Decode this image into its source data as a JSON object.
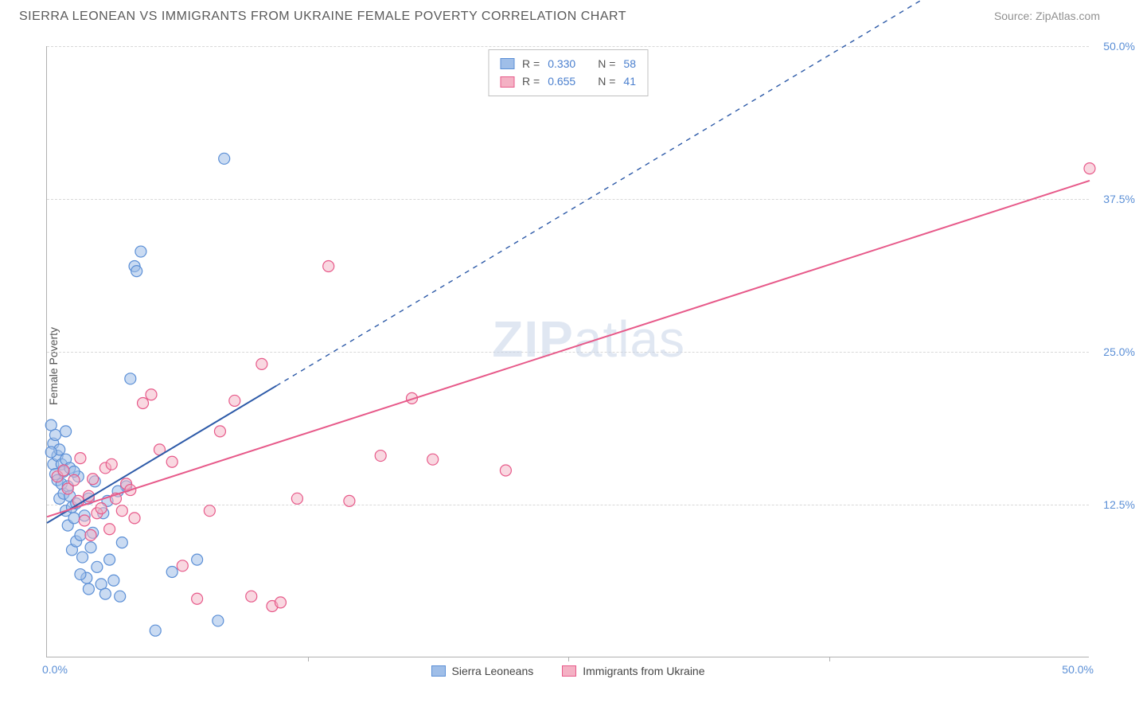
{
  "title": "SIERRA LEONEAN VS IMMIGRANTS FROM UKRAINE FEMALE POVERTY CORRELATION CHART",
  "source": "Source: ZipAtlas.com",
  "y_label": "Female Poverty",
  "watermark_a": "ZIP",
  "watermark_b": "atlas",
  "chart": {
    "type": "scatter",
    "xlim": [
      0,
      50
    ],
    "ylim": [
      0,
      50
    ],
    "y_ticks": [
      12.5,
      25.0,
      37.5,
      50.0
    ],
    "y_tick_labels": [
      "12.5%",
      "25.0%",
      "37.5%",
      "50.0%"
    ],
    "x_tick_left": "0.0%",
    "x_tick_right": "50.0%",
    "x_minor_ticks": [
      12.5,
      25.0,
      37.5
    ],
    "grid_color": "#d8d8d8",
    "background_color": "#ffffff",
    "marker_radius": 7,
    "marker_stroke_width": 1.2,
    "series": [
      {
        "name": "Sierra Leoneans",
        "fill": "#9fbee8",
        "stroke": "#5b8fd6",
        "fill_opacity": 0.55,
        "R": "0.330",
        "N": "58",
        "regression": {
          "x1": 0,
          "y1": 11.0,
          "x2": 50,
          "y2": 62.0,
          "solid_until_x": 11.0,
          "color": "#2d5aa8",
          "width": 2
        },
        "points": [
          [
            0.2,
            19.0
          ],
          [
            0.3,
            17.5
          ],
          [
            0.3,
            15.8
          ],
          [
            0.4,
            18.2
          ],
          [
            0.4,
            15.0
          ],
          [
            0.5,
            16.5
          ],
          [
            0.5,
            14.5
          ],
          [
            0.6,
            13.0
          ],
          [
            0.6,
            17.0
          ],
          [
            0.7,
            15.8
          ],
          [
            0.7,
            14.2
          ],
          [
            0.8,
            13.4
          ],
          [
            0.8,
            15.2
          ],
          [
            0.9,
            12.0
          ],
          [
            0.9,
            16.2
          ],
          [
            1.0,
            14.0
          ],
          [
            1.0,
            10.8
          ],
          [
            1.1,
            13.2
          ],
          [
            1.2,
            12.3
          ],
          [
            1.2,
            8.8
          ],
          [
            1.3,
            11.4
          ],
          [
            1.4,
            9.5
          ],
          [
            1.4,
            12.6
          ],
          [
            1.5,
            14.8
          ],
          [
            1.6,
            10.0
          ],
          [
            1.7,
            8.2
          ],
          [
            1.8,
            11.6
          ],
          [
            1.9,
            6.5
          ],
          [
            2.0,
            13.0
          ],
          [
            2.1,
            9.0
          ],
          [
            2.2,
            10.2
          ],
          [
            2.3,
            14.4
          ],
          [
            2.4,
            7.4
          ],
          [
            2.6,
            6.0
          ],
          [
            2.8,
            5.2
          ],
          [
            3.0,
            8.0
          ],
          [
            3.2,
            6.3
          ],
          [
            3.5,
            5.0
          ],
          [
            3.6,
            9.4
          ],
          [
            3.8,
            14.0
          ],
          [
            4.0,
            22.8
          ],
          [
            4.2,
            32.0
          ],
          [
            4.3,
            31.6
          ],
          [
            4.5,
            33.2
          ],
          [
            5.2,
            2.2
          ],
          [
            6.0,
            7.0
          ],
          [
            7.2,
            8.0
          ],
          [
            8.2,
            3.0
          ],
          [
            8.5,
            40.8
          ],
          [
            2.7,
            11.8
          ],
          [
            1.1,
            15.5
          ],
          [
            0.9,
            18.5
          ],
          [
            1.6,
            6.8
          ],
          [
            2.0,
            5.6
          ],
          [
            2.9,
            12.8
          ],
          [
            3.4,
            13.6
          ],
          [
            0.2,
            16.8
          ],
          [
            1.3,
            15.2
          ]
        ]
      },
      {
        "name": "Immigrants from Ukraine",
        "fill": "#f4b1c4",
        "stroke": "#e75a8a",
        "fill_opacity": 0.5,
        "R": "0.655",
        "N": "41",
        "regression": {
          "x1": 0,
          "y1": 11.5,
          "x2": 50,
          "y2": 39.0,
          "solid_until_x": 50,
          "color": "#e75a8a",
          "width": 2
        },
        "points": [
          [
            0.5,
            14.8
          ],
          [
            0.8,
            15.3
          ],
          [
            1.0,
            13.8
          ],
          [
            1.3,
            14.5
          ],
          [
            1.5,
            12.8
          ],
          [
            1.8,
            11.2
          ],
          [
            2.0,
            13.2
          ],
          [
            2.2,
            14.6
          ],
          [
            2.4,
            11.8
          ],
          [
            2.6,
            12.2
          ],
          [
            2.8,
            15.5
          ],
          [
            3.0,
            10.5
          ],
          [
            3.3,
            13.0
          ],
          [
            3.6,
            12.0
          ],
          [
            3.8,
            14.2
          ],
          [
            4.2,
            11.4
          ],
          [
            4.6,
            20.8
          ],
          [
            5.0,
            21.5
          ],
          [
            5.4,
            17.0
          ],
          [
            6.0,
            16.0
          ],
          [
            6.5,
            7.5
          ],
          [
            7.2,
            4.8
          ],
          [
            7.8,
            12.0
          ],
          [
            8.3,
            18.5
          ],
          [
            9.0,
            21.0
          ],
          [
            9.8,
            5.0
          ],
          [
            10.3,
            24.0
          ],
          [
            10.8,
            4.2
          ],
          [
            11.2,
            4.5
          ],
          [
            12.0,
            13.0
          ],
          [
            13.5,
            32.0
          ],
          [
            14.5,
            12.8
          ],
          [
            16.0,
            16.5
          ],
          [
            17.5,
            21.2
          ],
          [
            18.5,
            16.2
          ],
          [
            22.0,
            15.3
          ],
          [
            50.0,
            40.0
          ],
          [
            3.1,
            15.8
          ],
          [
            1.6,
            16.3
          ],
          [
            2.1,
            10.0
          ],
          [
            4.0,
            13.7
          ]
        ]
      }
    ]
  },
  "legend": {
    "r_label": "R =",
    "n_label": "N ="
  }
}
